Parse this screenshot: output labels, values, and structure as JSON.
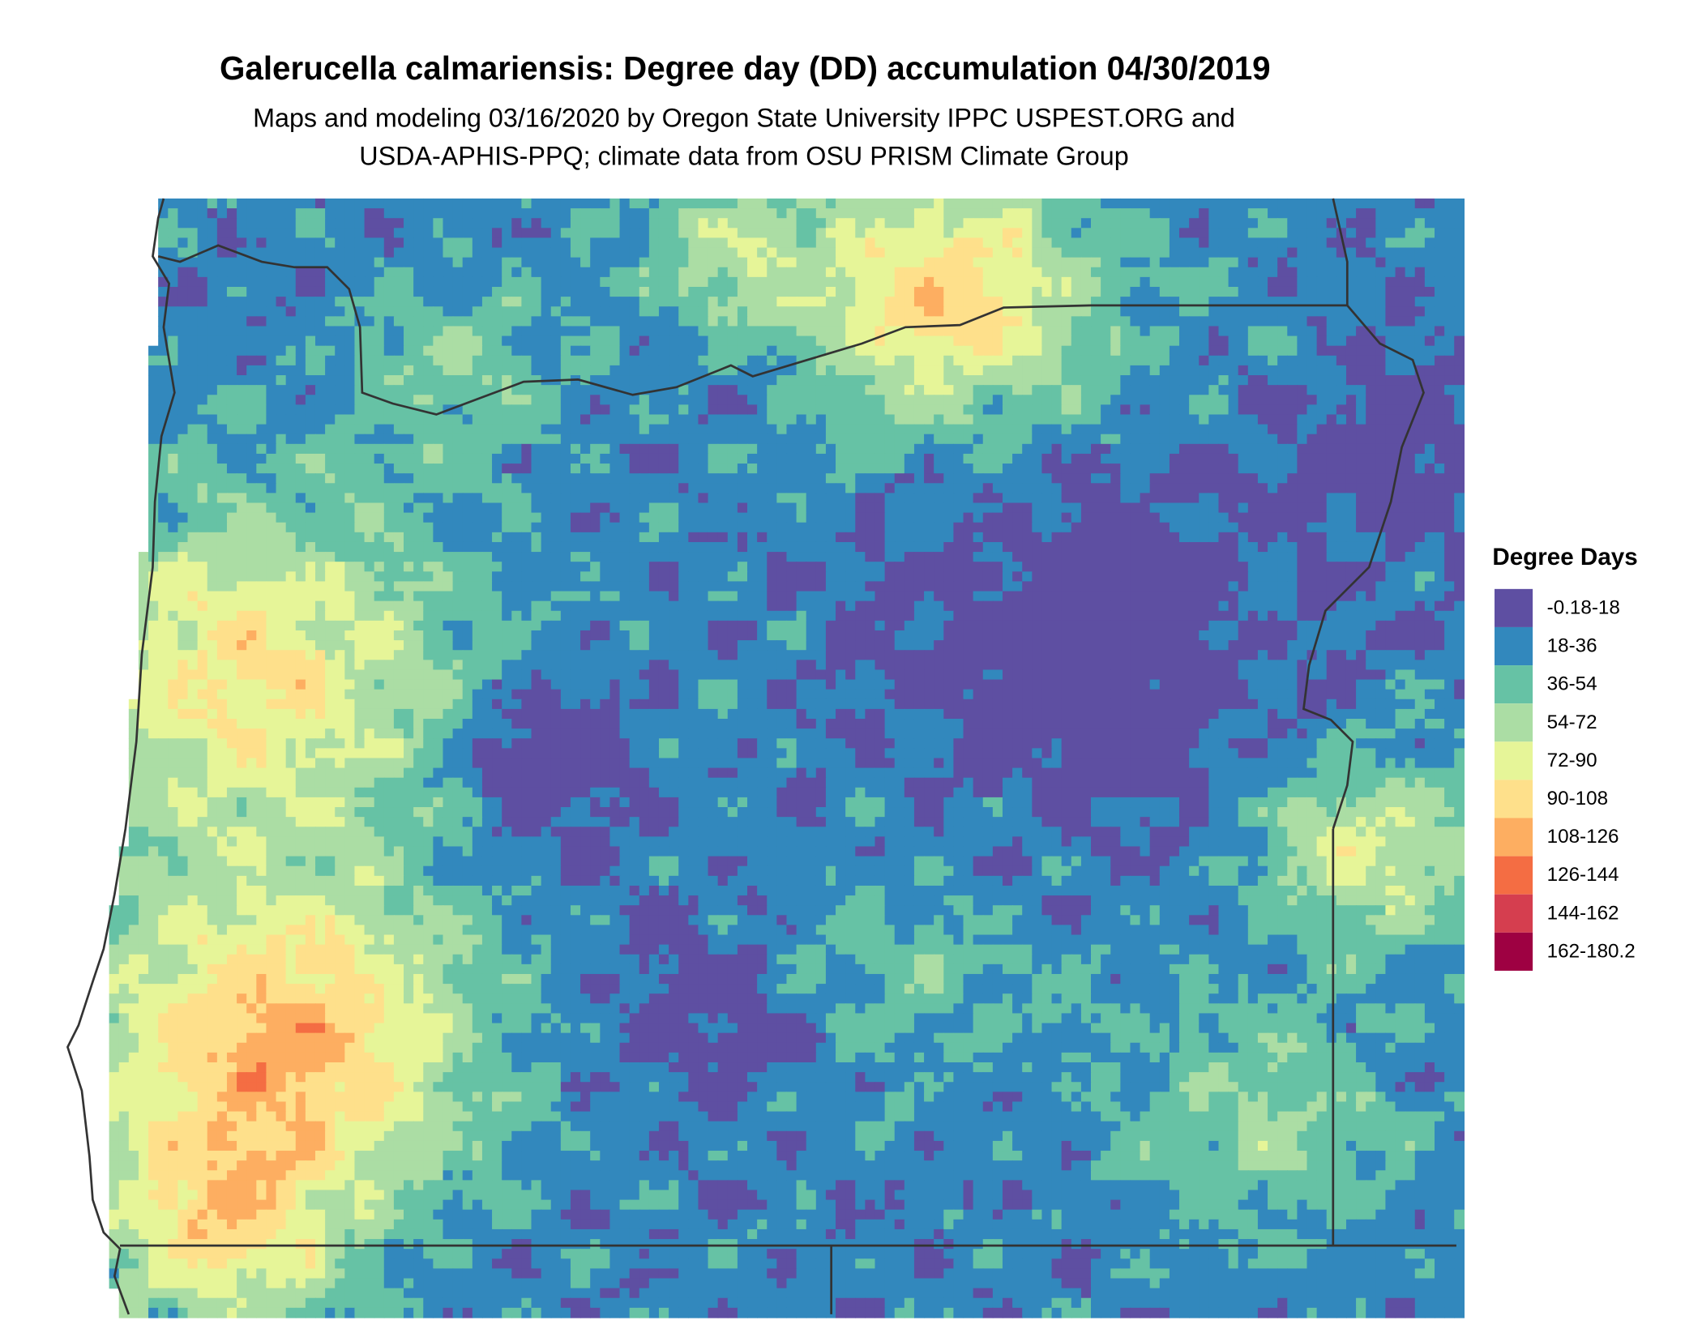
{
  "title": "Galerucella calmariensis: Degree day (DD) accumulation 04/30/2019",
  "subtitle": [
    "Maps and modeling 03/16/2020 by Oregon State University IPPC USPEST.ORG and",
    "USDA-APHIS-PPQ; climate data from OSU PRISM Climate Group"
  ],
  "legend": {
    "title": "Degree Days",
    "items": [
      {
        "label": "-0.18-18",
        "color": "#5e4fa2"
      },
      {
        "label": "18-36",
        "color": "#3288bd"
      },
      {
        "label": "36-54",
        "color": "#66c2a5"
      },
      {
        "label": "54-72",
        "color": "#abdda4"
      },
      {
        "label": "72-90",
        "color": "#e6f598"
      },
      {
        "label": "90-108",
        "color": "#fee08b"
      },
      {
        "label": "108-126",
        "color": "#fdae61"
      },
      {
        "label": "126-144",
        "color": "#f46d43"
      },
      {
        "label": "144-162",
        "color": "#d53e4f"
      },
      {
        "label": "162-180.2",
        "color": "#9e0142"
      }
    ]
  }
}
